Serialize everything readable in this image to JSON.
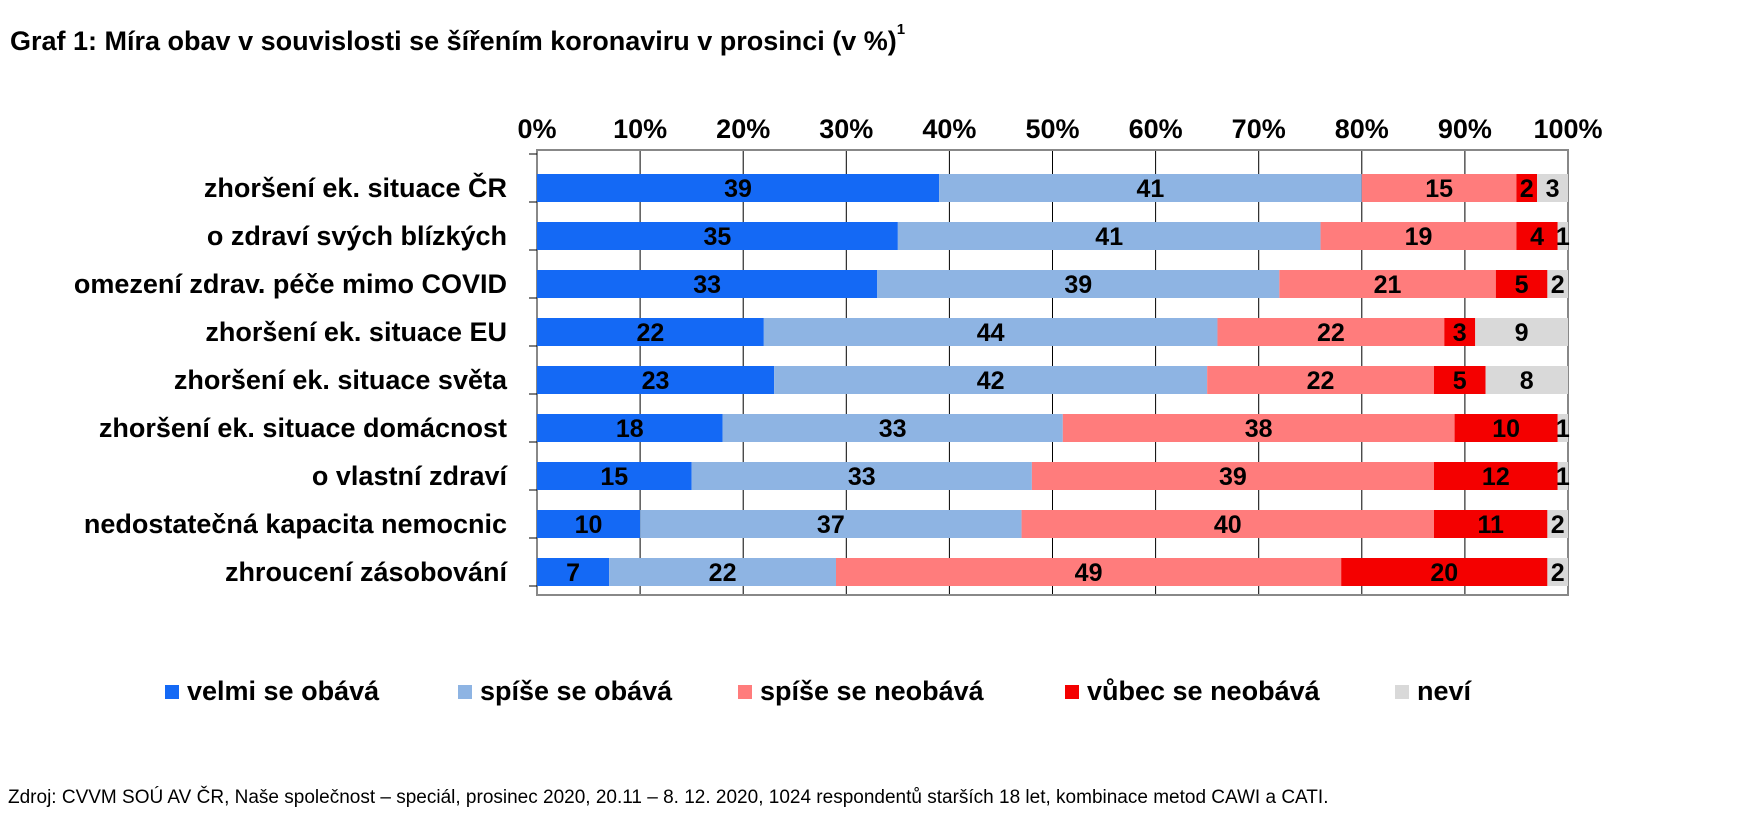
{
  "title_text": "Graf 1: Míra obav v souvislosti se šířením koronaviru v prosinci (v %)",
  "title_footnote": "1",
  "source": "Zdroj: CVVM SOÚ AV ČR, Naše společnost – speciál, prosinec 2020, 20.11 – 8. 12. 2020, 1024 respondentů starších 18 let, kombinace metod CAWI a CATI.",
  "chart_data": {
    "type": "bar",
    "orientation": "horizontal",
    "stacked": true,
    "title": "Graf 1: Míra obav v souvislosti se šířením koronaviru v prosinci (v %)",
    "xlabel": "",
    "ylabel": "",
    "xlim": [
      0,
      100
    ],
    "x_ticks": [
      "0%",
      "10%",
      "20%",
      "30%",
      "40%",
      "50%",
      "60%",
      "70%",
      "80%",
      "90%",
      "100%"
    ],
    "x_axis_position": "top",
    "grid": true,
    "legend_position": "bottom",
    "categories": [
      "zhoršení ek. situace ČR",
      "o zdraví svých blízkých",
      "omezení zdrav. péče mimo COVID",
      "zhoršení ek. situace EU",
      "zhoršení ek. situace světa",
      "zhoršení ek. situace domácnost",
      "o vlastní zdraví",
      "nedostatečná kapacita nemocnic",
      "zhroucení zásobování"
    ],
    "series": [
      {
        "name": "velmi se obává",
        "color": "#1469F5",
        "values": [
          39,
          35,
          33,
          22,
          23,
          18,
          15,
          10,
          7
        ]
      },
      {
        "name": "spíše se obává",
        "color": "#8EB4E3",
        "values": [
          41,
          41,
          39,
          44,
          42,
          33,
          33,
          37,
          22
        ]
      },
      {
        "name": "spíše se neobává",
        "color": "#FF7C7C",
        "values": [
          15,
          19,
          21,
          22,
          22,
          38,
          39,
          40,
          49
        ]
      },
      {
        "name": "vůbec se neobává",
        "color": "#F40000",
        "values": [
          2,
          4,
          5,
          3,
          5,
          10,
          12,
          11,
          20
        ]
      },
      {
        "name": "neví",
        "color": "#D9D9D9",
        "values": [
          3,
          1,
          2,
          9,
          8,
          1,
          1,
          2,
          2
        ]
      }
    ]
  }
}
